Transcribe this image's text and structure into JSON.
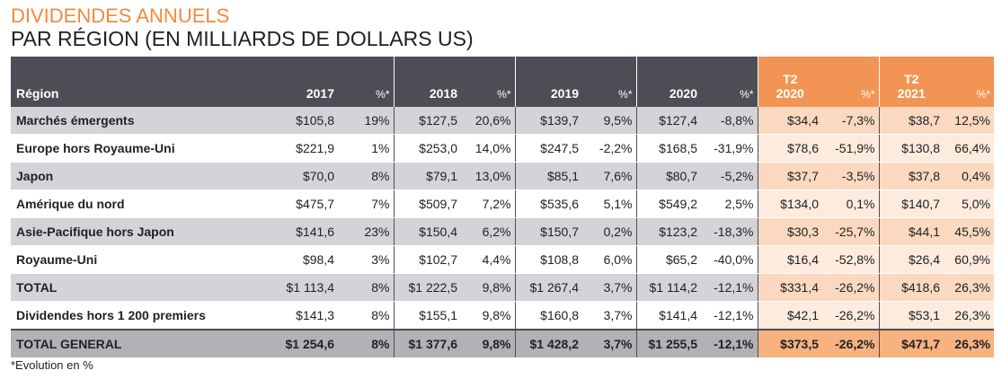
{
  "title": {
    "line1": "DIVIDENDES ANNUELS",
    "line2": "PAR RÉGION (EN MILLIARDS DE DOLLARS US)"
  },
  "table": {
    "header": {
      "region": "Région",
      "y2017": "2017",
      "p2017": "%*",
      "y2018": "2018",
      "p2018": "%*",
      "y2019": "2019",
      "p2019": "%*",
      "y2020": "2020",
      "p2020": "%*",
      "q2020_top": "T2",
      "q2020_bottom": "2020",
      "pq2020": "%*",
      "q2021_top": "T2",
      "q2021_bottom": "2021",
      "pq2021": "%*"
    },
    "rows": [
      {
        "region": "Marchés émergents",
        "v": [
          "$105,8",
          "19%",
          "$127,5",
          "20,6%",
          "$139,7",
          "9,5%",
          "$127,4",
          "-8,8%",
          "$34,4",
          "-7,3%",
          "$38,7",
          "12,5%"
        ]
      },
      {
        "region": "Europe hors Royaume-Uni",
        "v": [
          "$221,9",
          "1%",
          "$253,0",
          "14,0%",
          "$247,5",
          "-2,2%",
          "$168,5",
          "-31,9%",
          "$78,6",
          "-51,9%",
          "$130,8",
          "66,4%"
        ]
      },
      {
        "region": "Japon",
        "v": [
          "$70,0",
          "8%",
          "$79,1",
          "13,0%",
          "$85,1",
          "7,6%",
          "$80,7",
          "-5,2%",
          "$37,7",
          "-3,5%",
          "$37,8",
          "0,4%"
        ]
      },
      {
        "region": "Amérique du nord",
        "v": [
          "$475,7",
          "7%",
          "$509,7",
          "7,2%",
          "$535,6",
          "5,1%",
          "$549,2",
          "2,5%",
          "$134,0",
          "0,1%",
          "$140,7",
          "5,0%"
        ]
      },
      {
        "region": "Asie-Pacifique hors Japon",
        "v": [
          "$141,6",
          "23%",
          "$150,4",
          "6,2%",
          "$150,7",
          "0,2%",
          "$123,2",
          "-18,3%",
          "$30,3",
          "-25,7%",
          "$44,1",
          "45,5%"
        ]
      },
      {
        "region": "Royaume-Uni",
        "v": [
          "$98,4",
          "3%",
          "$102,7",
          "4,4%",
          "$108,8",
          "6,0%",
          "$65,2",
          "-40,0%",
          "$16,4",
          "-52,8%",
          "$26,4",
          "60,9%"
        ]
      },
      {
        "region": "TOTAL",
        "v": [
          "$1 113,4",
          "8%",
          "$1 222,5",
          "9,8%",
          "$1 267,4",
          "3,7%",
          "$1 114,2",
          "-12,1%",
          "$331,4",
          "-26,2%",
          "$418,6",
          "26,3%"
        ]
      },
      {
        "region": "Dividendes hors 1 200 premiers",
        "v": [
          "$141,3",
          "8%",
          "$155,1",
          "9,8%",
          "$160,8",
          "3,7%",
          "$141,4",
          "-12,1%",
          "$42,1",
          "-26,2%",
          "$53,1",
          "26,3%"
        ]
      },
      {
        "region": "TOTAL GENERAL",
        "v": [
          "$1 254,6",
          "8%",
          "$1 377,6",
          "9,8%",
          "$1 428,2",
          "3,7%",
          "$1 255,5",
          "-12,1%",
          "$373,5",
          "-26,2%",
          "$471,7",
          "26,3%"
        ]
      }
    ]
  },
  "footnote": "*Evolution en %",
  "colors": {
    "accent": "#f28a3c",
    "header_dark": "#4d4e55",
    "header_orange": "#f29554"
  }
}
